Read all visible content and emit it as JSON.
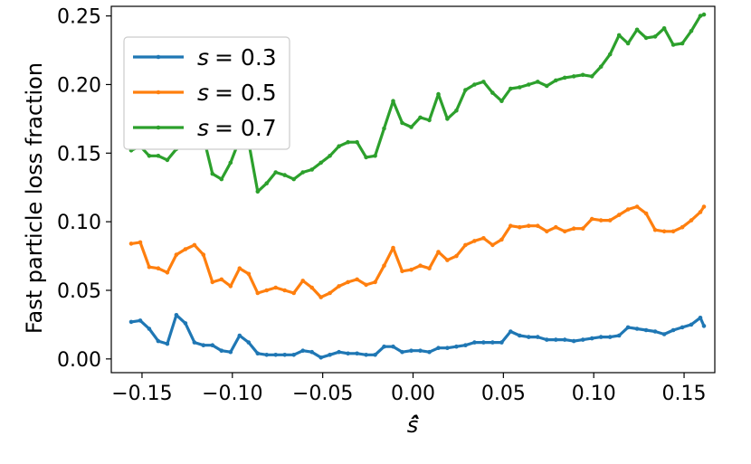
{
  "chart_data": {
    "type": "line",
    "title": "",
    "xlabel": "ŝ̂",
    "ylabel": "Fast particle loss fraction",
    "xlim": [
      -0.167,
      0.167
    ],
    "ylim": [
      -0.01,
      0.257
    ],
    "xticks": [
      -0.15,
      -0.1,
      -0.05,
      0.0,
      0.05,
      0.1,
      0.15
    ],
    "xtick_labels": [
      "−0.15",
      "−0.10",
      "−0.05",
      "0.00",
      "0.05",
      "0.10",
      "0.15"
    ],
    "yticks": [
      0.0,
      0.05,
      0.1,
      0.15,
      0.2,
      0.25
    ],
    "ytick_labels": [
      "0.00",
      "0.05",
      "0.10",
      "0.15",
      "0.20",
      "0.25"
    ],
    "grid": false,
    "legend_position": "top-left",
    "series": [
      {
        "name": "s = 0.3",
        "legend_s": "s",
        "legend_eq": "= 0.3",
        "color": "#1f77b4",
        "points": [
          [
            -0.156,
            0.027
          ],
          [
            -0.151,
            0.028
          ],
          [
            -0.146,
            0.022
          ],
          [
            -0.141,
            0.013
          ],
          [
            -0.136,
            0.011
          ],
          [
            -0.131,
            0.032
          ],
          [
            -0.126,
            0.026
          ],
          [
            -0.121,
            0.012
          ],
          [
            -0.116,
            0.01
          ],
          [
            -0.111,
            0.01
          ],
          [
            -0.106,
            0.006
          ],
          [
            -0.101,
            0.005
          ],
          [
            -0.096,
            0.017
          ],
          [
            -0.091,
            0.012
          ],
          [
            -0.086,
            0.004
          ],
          [
            -0.081,
            0.003
          ],
          [
            -0.076,
            0.003
          ],
          [
            -0.071,
            0.003
          ],
          [
            -0.066,
            0.003
          ],
          [
            -0.061,
            0.006
          ],
          [
            -0.056,
            0.005
          ],
          [
            -0.051,
            0.001
          ],
          [
            -0.046,
            0.003
          ],
          [
            -0.041,
            0.005
          ],
          [
            -0.036,
            0.004
          ],
          [
            -0.031,
            0.004
          ],
          [
            -0.026,
            0.003
          ],
          [
            -0.021,
            0.003
          ],
          [
            -0.016,
            0.009
          ],
          [
            -0.011,
            0.009
          ],
          [
            -0.006,
            0.005
          ],
          [
            -0.001,
            0.006
          ],
          [
            0.004,
            0.006
          ],
          [
            0.009,
            0.005
          ],
          [
            0.014,
            0.008
          ],
          [
            0.019,
            0.008
          ],
          [
            0.024,
            0.009
          ],
          [
            0.029,
            0.01
          ],
          [
            0.034,
            0.012
          ],
          [
            0.039,
            0.012
          ],
          [
            0.044,
            0.012
          ],
          [
            0.049,
            0.012
          ],
          [
            0.054,
            0.02
          ],
          [
            0.059,
            0.017
          ],
          [
            0.064,
            0.016
          ],
          [
            0.069,
            0.016
          ],
          [
            0.074,
            0.014
          ],
          [
            0.079,
            0.014
          ],
          [
            0.084,
            0.014
          ],
          [
            0.089,
            0.013
          ],
          [
            0.094,
            0.014
          ],
          [
            0.099,
            0.015
          ],
          [
            0.104,
            0.016
          ],
          [
            0.109,
            0.016
          ],
          [
            0.114,
            0.017
          ],
          [
            0.119,
            0.023
          ],
          [
            0.124,
            0.022
          ],
          [
            0.129,
            0.021
          ],
          [
            0.134,
            0.02
          ],
          [
            0.139,
            0.018
          ],
          [
            0.144,
            0.021
          ],
          [
            0.149,
            0.023
          ],
          [
            0.154,
            0.025
          ],
          [
            0.159,
            0.03
          ],
          [
            0.161,
            0.024
          ]
        ]
      },
      {
        "name": "s = 0.5",
        "legend_s": "s",
        "legend_eq": "= 0.5",
        "color": "#ff7f0e",
        "points": [
          [
            -0.156,
            0.084
          ],
          [
            -0.151,
            0.085
          ],
          [
            -0.146,
            0.067
          ],
          [
            -0.141,
            0.066
          ],
          [
            -0.136,
            0.063
          ],
          [
            -0.131,
            0.076
          ],
          [
            -0.126,
            0.08
          ],
          [
            -0.121,
            0.083
          ],
          [
            -0.116,
            0.076
          ],
          [
            -0.111,
            0.056
          ],
          [
            -0.106,
            0.058
          ],
          [
            -0.101,
            0.053
          ],
          [
            -0.096,
            0.066
          ],
          [
            -0.091,
            0.062
          ],
          [
            -0.086,
            0.048
          ],
          [
            -0.081,
            0.05
          ],
          [
            -0.076,
            0.052
          ],
          [
            -0.071,
            0.05
          ],
          [
            -0.066,
            0.048
          ],
          [
            -0.061,
            0.057
          ],
          [
            -0.056,
            0.052
          ],
          [
            -0.051,
            0.045
          ],
          [
            -0.046,
            0.048
          ],
          [
            -0.041,
            0.053
          ],
          [
            -0.036,
            0.056
          ],
          [
            -0.031,
            0.058
          ],
          [
            -0.026,
            0.054
          ],
          [
            -0.021,
            0.056
          ],
          [
            -0.016,
            0.068
          ],
          [
            -0.011,
            0.081
          ],
          [
            -0.006,
            0.064
          ],
          [
            -0.001,
            0.065
          ],
          [
            0.004,
            0.068
          ],
          [
            0.009,
            0.066
          ],
          [
            0.014,
            0.078
          ],
          [
            0.019,
            0.072
          ],
          [
            0.024,
            0.075
          ],
          [
            0.029,
            0.083
          ],
          [
            0.034,
            0.086
          ],
          [
            0.039,
            0.088
          ],
          [
            0.044,
            0.083
          ],
          [
            0.049,
            0.087
          ],
          [
            0.054,
            0.097
          ],
          [
            0.059,
            0.096
          ],
          [
            0.064,
            0.097
          ],
          [
            0.069,
            0.097
          ],
          [
            0.074,
            0.093
          ],
          [
            0.079,
            0.096
          ],
          [
            0.084,
            0.093
          ],
          [
            0.089,
            0.095
          ],
          [
            0.094,
            0.095
          ],
          [
            0.099,
            0.102
          ],
          [
            0.104,
            0.101
          ],
          [
            0.109,
            0.101
          ],
          [
            0.114,
            0.105
          ],
          [
            0.119,
            0.109
          ],
          [
            0.124,
            0.111
          ],
          [
            0.129,
            0.106
          ],
          [
            0.134,
            0.094
          ],
          [
            0.139,
            0.093
          ],
          [
            0.144,
            0.093
          ],
          [
            0.149,
            0.096
          ],
          [
            0.154,
            0.101
          ],
          [
            0.159,
            0.107
          ],
          [
            0.161,
            0.111
          ]
        ]
      },
      {
        "name": "s = 0.7",
        "legend_s": "s",
        "legend_eq": "= 0.7",
        "color": "#2ca02c",
        "points": [
          [
            -0.156,
            0.152
          ],
          [
            -0.151,
            0.155
          ],
          [
            -0.146,
            0.148
          ],
          [
            -0.141,
            0.148
          ],
          [
            -0.136,
            0.145
          ],
          [
            -0.131,
            0.153
          ],
          [
            -0.126,
            0.165
          ],
          [
            -0.121,
            0.166
          ],
          [
            -0.116,
            0.162
          ],
          [
            -0.111,
            0.135
          ],
          [
            -0.106,
            0.131
          ],
          [
            -0.101,
            0.143
          ],
          [
            -0.096,
            0.16
          ],
          [
            -0.091,
            0.158
          ],
          [
            -0.086,
            0.122
          ],
          [
            -0.081,
            0.128
          ],
          [
            -0.076,
            0.136
          ],
          [
            -0.071,
            0.134
          ],
          [
            -0.066,
            0.131
          ],
          [
            -0.061,
            0.136
          ],
          [
            -0.056,
            0.138
          ],
          [
            -0.051,
            0.143
          ],
          [
            -0.046,
            0.148
          ],
          [
            -0.041,
            0.155
          ],
          [
            -0.036,
            0.158
          ],
          [
            -0.031,
            0.158
          ],
          [
            -0.026,
            0.147
          ],
          [
            -0.021,
            0.148
          ],
          [
            -0.016,
            0.168
          ],
          [
            -0.011,
            0.188
          ],
          [
            -0.006,
            0.172
          ],
          [
            -0.001,
            0.169
          ],
          [
            0.004,
            0.176
          ],
          [
            0.009,
            0.174
          ],
          [
            0.014,
            0.193
          ],
          [
            0.019,
            0.175
          ],
          [
            0.024,
            0.181
          ],
          [
            0.029,
            0.196
          ],
          [
            0.034,
            0.2
          ],
          [
            0.039,
            0.202
          ],
          [
            0.044,
            0.194
          ],
          [
            0.049,
            0.188
          ],
          [
            0.054,
            0.197
          ],
          [
            0.059,
            0.198
          ],
          [
            0.064,
            0.2
          ],
          [
            0.069,
            0.202
          ],
          [
            0.074,
            0.199
          ],
          [
            0.079,
            0.203
          ],
          [
            0.084,
            0.205
          ],
          [
            0.089,
            0.206
          ],
          [
            0.094,
            0.207
          ],
          [
            0.099,
            0.206
          ],
          [
            0.104,
            0.213
          ],
          [
            0.109,
            0.222
          ],
          [
            0.114,
            0.236
          ],
          [
            0.119,
            0.23
          ],
          [
            0.124,
            0.24
          ],
          [
            0.129,
            0.234
          ],
          [
            0.134,
            0.235
          ],
          [
            0.139,
            0.241
          ],
          [
            0.144,
            0.229
          ],
          [
            0.149,
            0.23
          ],
          [
            0.154,
            0.239
          ],
          [
            0.159,
            0.25
          ],
          [
            0.161,
            0.251
          ]
        ]
      }
    ]
  }
}
